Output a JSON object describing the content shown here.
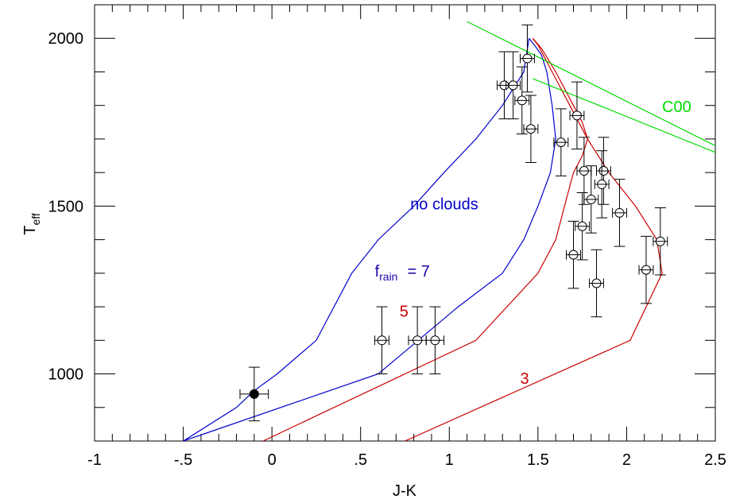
{
  "chart_data": {
    "type": "line",
    "xlabel": "J-K",
    "ylabel": {
      "main": "T",
      "sub": "eff"
    },
    "xlim": [
      -1,
      2.5
    ],
    "ylim": [
      800,
      2100
    ],
    "x_ticks": [
      {
        "value": -1,
        "label": "-1"
      },
      {
        "value": -0.5,
        "label": "-.5"
      },
      {
        "value": 0,
        "label": "0"
      },
      {
        "value": 0.5,
        "label": ".5"
      },
      {
        "value": 1,
        "label": "1"
      },
      {
        "value": 1.5,
        "label": "1.5"
      },
      {
        "value": 2,
        "label": "2"
      },
      {
        "value": 2.5,
        "label": "2.5"
      }
    ],
    "y_ticks": [
      {
        "value": 1000,
        "label": "1000"
      },
      {
        "value": 1500,
        "label": "1500"
      },
      {
        "value": 2000,
        "label": "2000"
      }
    ],
    "x_minor_step": 0.1,
    "y_minor_step": 100,
    "series": [
      {
        "name": "no clouds",
        "color": "#0000cc",
        "x": [
          -0.5,
          -0.2,
          -0.1,
          0.03,
          0.25,
          0.45,
          0.6,
          0.8,
          0.97,
          1.15,
          1.3,
          1.42,
          1.45
        ],
        "y": [
          800,
          900,
          950,
          1000,
          1100,
          1300,
          1400,
          1500,
          1600,
          1700,
          1800,
          1900,
          2000
        ]
      },
      {
        "name": "frain = 7",
        "color": "#0000cc",
        "x": [
          -0.5,
          0.6,
          1.05,
          1.3,
          1.42,
          1.5,
          1.57,
          1.6,
          1.58,
          1.55,
          1.52,
          1.48,
          1.45
        ],
        "y": [
          800,
          1000,
          1200,
          1300,
          1400,
          1500,
          1600,
          1700,
          1800,
          1900,
          1950,
          1980,
          2000
        ]
      },
      {
        "name": "5",
        "color": "#cc0000",
        "x": [
          -0.05,
          1.15,
          1.5,
          1.6,
          1.65,
          1.7,
          1.75,
          1.78,
          1.75,
          1.7,
          1.6,
          1.52,
          1.47
        ],
        "y": [
          800,
          1100,
          1300,
          1400,
          1500,
          1600,
          1650,
          1700,
          1750,
          1800,
          1900,
          1970,
          2000
        ]
      },
      {
        "name": "3",
        "color": "#cc0000",
        "x": [
          0.75,
          2.02,
          2.2,
          2.17,
          2.05,
          1.9,
          1.78,
          1.68,
          1.58,
          1.5,
          1.47
        ],
        "y": [
          800,
          1100,
          1300,
          1400,
          1500,
          1600,
          1700,
          1800,
          1900,
          1980,
          2000
        ]
      },
      {
        "name": "C00",
        "color": "#00dd00",
        "x": [
          1.1,
          2.5
        ],
        "y": [
          2050,
          1680
        ]
      },
      {
        "name": "C00",
        "color": "#00dd00",
        "x": [
          1.47,
          2.5
        ],
        "y": [
          1880,
          1660
        ]
      }
    ],
    "points": [
      {
        "x": -0.1,
        "y": 940,
        "xerr": 0.08,
        "yerr_lo": 80,
        "yerr_hi": 80,
        "filled": true
      },
      {
        "x": 0.62,
        "y": 1100,
        "xerr": 0.04,
        "yerr_lo": 100,
        "yerr_hi": 100
      },
      {
        "x": 0.82,
        "y": 1100,
        "xerr": 0.05,
        "yerr_lo": 100,
        "yerr_hi": 100
      },
      {
        "x": 0.92,
        "y": 1100,
        "xerr": 0.05,
        "yerr_lo": 100,
        "yerr_hi": 100
      },
      {
        "x": 1.31,
        "y": 1860,
        "xerr": 0.04,
        "yerr_lo": 100,
        "yerr_hi": 100
      },
      {
        "x": 1.36,
        "y": 1860,
        "xerr": 0.04,
        "yerr_lo": 100,
        "yerr_hi": 100
      },
      {
        "x": 1.44,
        "y": 1940,
        "xerr": 0.04,
        "yerr_lo": 100,
        "yerr_hi": 100
      },
      {
        "x": 1.41,
        "y": 1815,
        "xerr": 0.04,
        "yerr_lo": 100,
        "yerr_hi": 100
      },
      {
        "x": 1.46,
        "y": 1730,
        "xerr": 0.04,
        "yerr_lo": 100,
        "yerr_hi": 100
      },
      {
        "x": 1.63,
        "y": 1690,
        "xerr": 0.04,
        "yerr_lo": 100,
        "yerr_hi": 100
      },
      {
        "x": 1.72,
        "y": 1770,
        "xerr": 0.04,
        "yerr_lo": 100,
        "yerr_hi": 100
      },
      {
        "x": 1.76,
        "y": 1605,
        "xerr": 0.04,
        "yerr_lo": 100,
        "yerr_hi": 100
      },
      {
        "x": 1.87,
        "y": 1605,
        "xerr": 0.04,
        "yerr_lo": 100,
        "yerr_hi": 100
      },
      {
        "x": 1.86,
        "y": 1565,
        "xerr": 0.04,
        "yerr_lo": 100,
        "yerr_hi": 100
      },
      {
        "x": 1.8,
        "y": 1520,
        "xerr": 0.04,
        "yerr_lo": 100,
        "yerr_hi": 100
      },
      {
        "x": 1.96,
        "y": 1480,
        "xerr": 0.04,
        "yerr_lo": 100,
        "yerr_hi": 100
      },
      {
        "x": 1.75,
        "y": 1440,
        "xerr": 0.04,
        "yerr_lo": 100,
        "yerr_hi": 100
      },
      {
        "x": 2.19,
        "y": 1395,
        "xerr": 0.04,
        "yerr_lo": 100,
        "yerr_hi": 100
      },
      {
        "x": 1.7,
        "y": 1355,
        "xerr": 0.04,
        "yerr_lo": 100,
        "yerr_hi": 100
      },
      {
        "x": 1.83,
        "y": 1270,
        "xerr": 0.04,
        "yerr_lo": 100,
        "yerr_hi": 100
      },
      {
        "x": 2.11,
        "y": 1310,
        "xerr": 0.04,
        "yerr_lo": 100,
        "yerr_hi": 100
      }
    ],
    "annotations": [
      {
        "text": "no clouds",
        "x": 0.78,
        "y": 1490,
        "color": "#0000cc"
      },
      {
        "text": "f",
        "sub": "rain",
        "rest": "= 7",
        "x": 0.58,
        "y": 1290,
        "color": "#2200aa"
      },
      {
        "text": "5",
        "x": 0.72,
        "y": 1170,
        "color": "#cc0000"
      },
      {
        "text": "3",
        "x": 1.4,
        "y": 970,
        "color": "#cc0000"
      },
      {
        "text": "C00",
        "x": 2.2,
        "y": 1780,
        "color": "#00dd00"
      }
    ],
    "grid": false,
    "legend": "none"
  }
}
